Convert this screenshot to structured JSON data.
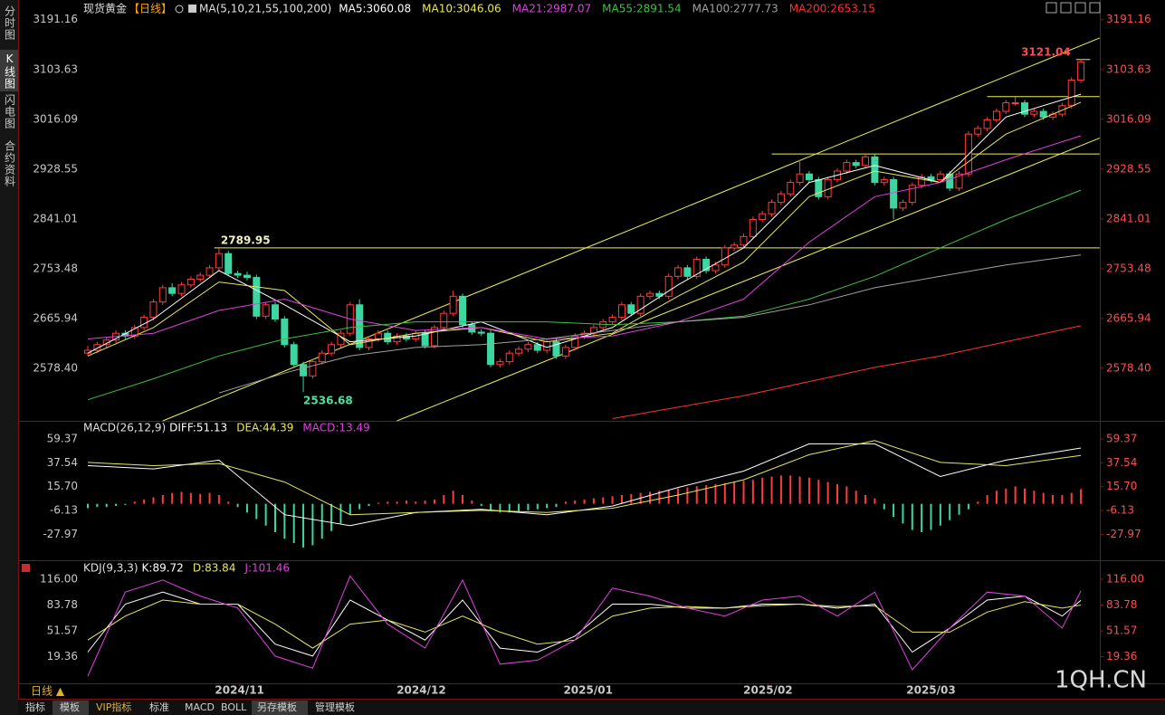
{
  "ui": {
    "sidebar_tabs": [
      "分时图",
      "K线图",
      "闪电图",
      "合约资料"
    ],
    "period_button": "日线 ▲",
    "bottom_tabs": [
      "指标",
      "模板",
      "VIP指标",
      "标准",
      "MACD",
      "BOLL",
      "另存模板",
      "管理模板"
    ],
    "watermark": "1QH.CN"
  },
  "chart_data": [
    {
      "type": "candlestick",
      "title": "现货黄金",
      "period": "【日线】",
      "indicator": "MA(5,10,21,55,100,200)",
      "up_color": "#ff3c3c",
      "down_color": "#3cd6a0",
      "trend_color": "#f0f050",
      "open": [
        2605,
        2610,
        2620,
        2628,
        2640,
        2635,
        2650,
        2668,
        2695,
        2720,
        2710,
        2725,
        2735,
        2742,
        2755,
        2780,
        2745,
        2742,
        2738,
        2670,
        2690,
        2665,
        2620,
        2585,
        2565,
        2590,
        2605,
        2620,
        2640,
        2690,
        2615,
        2630,
        2640,
        2625,
        2635,
        2630,
        2640,
        2618,
        2650,
        2675,
        2705,
        2655,
        2642,
        2640,
        2585,
        2590,
        2605,
        2612,
        2620,
        2610,
        2625,
        2600,
        2615,
        2635,
        2640,
        2650,
        2660,
        2668,
        2690,
        2675,
        2705,
        2710,
        2705,
        2740,
        2755,
        2740,
        2770,
        2750,
        2760,
        2790,
        2795,
        2810,
        2840,
        2850,
        2870,
        2885,
        2905,
        2920,
        2910,
        2880,
        2910,
        2925,
        2940,
        2935,
        2950,
        2905,
        2910,
        2860,
        2870,
        2900,
        2915,
        2910,
        2920,
        2895,
        2920,
        2990,
        3000,
        3015,
        3030,
        3045,
        3045,
        3025,
        3030,
        3020,
        3025,
        3040,
        3085
      ],
      "high": [
        2618,
        2625,
        2633,
        2645,
        2645,
        2655,
        2673,
        2700,
        2725,
        2728,
        2730,
        2740,
        2747,
        2760,
        2789.95,
        2785,
        2750,
        2748,
        2743,
        2695,
        2695,
        2670,
        2625,
        2590,
        2595,
        2610,
        2625,
        2645,
        2695,
        2700,
        2635,
        2645,
        2645,
        2640,
        2640,
        2645,
        2645,
        2655,
        2680,
        2715,
        2710,
        2660,
        2647,
        2645,
        2595,
        2610,
        2617,
        2625,
        2625,
        2630,
        2630,
        2620,
        2640,
        2645,
        2655,
        2665,
        2673,
        2695,
        2695,
        2710,
        2715,
        2715,
        2745,
        2760,
        2760,
        2775,
        2775,
        2765,
        2795,
        2800,
        2815,
        2845,
        2855,
        2875,
        2890,
        2910,
        2945,
        2925,
        2915,
        2915,
        2930,
        2945,
        2945,
        2955,
        2955,
        2915,
        2915,
        2875,
        2905,
        2920,
        2920,
        2925,
        2925,
        2925,
        2995,
        3005,
        3020,
        3035,
        3050,
        3055,
        3050,
        3035,
        3035,
        3030,
        3045,
        3090,
        3121.04
      ],
      "low": [
        2600,
        2605,
        2615,
        2623,
        2630,
        2630,
        2645,
        2663,
        2690,
        2705,
        2705,
        2720,
        2730,
        2737,
        2750,
        2740,
        2737,
        2733,
        2665,
        2665,
        2660,
        2615,
        2580,
        2536.68,
        2560,
        2585,
        2600,
        2615,
        2635,
        2610,
        2610,
        2625,
        2620,
        2620,
        2625,
        2625,
        2613,
        2613,
        2645,
        2670,
        2650,
        2637,
        2635,
        2580,
        2580,
        2585,
        2600,
        2607,
        2605,
        2605,
        2595,
        2595,
        2610,
        2630,
        2635,
        2645,
        2655,
        2663,
        2670,
        2670,
        2700,
        2700,
        2700,
        2735,
        2735,
        2735,
        2745,
        2745,
        2755,
        2785,
        2790,
        2805,
        2835,
        2845,
        2865,
        2880,
        2900,
        2905,
        2875,
        2875,
        2905,
        2920,
        2930,
        2930,
        2900,
        2900,
        2840,
        2855,
        2865,
        2895,
        2905,
        2905,
        2890,
        2890,
        2915,
        2985,
        2995,
        3010,
        3025,
        3040,
        3020,
        3020,
        3015,
        3015,
        3020,
        3035,
        3080
      ],
      "close": [
        2610,
        2620,
        2628,
        2640,
        2635,
        2650,
        2668,
        2695,
        2720,
        2710,
        2725,
        2735,
        2742,
        2755,
        2780,
        2745,
        2742,
        2738,
        2670,
        2690,
        2665,
        2620,
        2585,
        2565,
        2590,
        2605,
        2620,
        2640,
        2690,
        2615,
        2630,
        2640,
        2625,
        2635,
        2630,
        2640,
        2618,
        2650,
        2675,
        2705,
        2655,
        2642,
        2640,
        2585,
        2590,
        2605,
        2612,
        2620,
        2610,
        2625,
        2600,
        2615,
        2635,
        2640,
        2650,
        2660,
        2668,
        2690,
        2675,
        2705,
        2710,
        2705,
        2740,
        2755,
        2740,
        2770,
        2750,
        2760,
        2790,
        2795,
        2810,
        2840,
        2850,
        2870,
        2885,
        2905,
        2920,
        2910,
        2880,
        2910,
        2925,
        2940,
        2935,
        2950,
        2905,
        2910,
        2860,
        2870,
        2900,
        2915,
        2910,
        2920,
        2895,
        2920,
        2990,
        3000,
        3015,
        3030,
        3045,
        3045,
        3025,
        3030,
        3020,
        3025,
        3040,
        3085,
        3117
      ],
      "ma_x": [
        0,
        7,
        14,
        21,
        28,
        35,
        42,
        49,
        56,
        63,
        70,
        77,
        84,
        91,
        98,
        106
      ],
      "series": [
        {
          "name": "MA5:3060.08",
          "color": "#ffffff",
          "values": [
            2605,
            2665,
            2750,
            2690,
            2625,
            2635,
            2660,
            2615,
            2650,
            2725,
            2790,
            2905,
            2935,
            2905,
            3020,
            3060.08
          ]
        },
        {
          "name": "MA10:3046.06",
          "color": "#e8e85a",
          "values": [
            2600,
            2650,
            2730,
            2715,
            2620,
            2640,
            2650,
            2625,
            2640,
            2705,
            2765,
            2880,
            2925,
            2905,
            2990,
            3046.06
          ]
        },
        {
          "name": "MA21:2987.07",
          "color": "#e040e0",
          "values": [
            2630,
            2640,
            2680,
            2700,
            2665,
            2645,
            2650,
            2630,
            2635,
            2660,
            2700,
            2800,
            2880,
            2905,
            2945,
            2987.07
          ]
        },
        {
          "name": "MA55:2891.54",
          "color": "#40c040",
          "values": [
            2523,
            2560,
            2600,
            2630,
            2650,
            2660,
            2660,
            2660,
            2655,
            2660,
            2670,
            2700,
            2740,
            2790,
            2840,
            2891.54
          ]
        },
        {
          "name": "MA100:2777.73",
          "color": "#a0a0a0",
          "values": [
            null,
            null,
            2535,
            2570,
            2600,
            2615,
            2620,
            2630,
            2645,
            2660,
            2668,
            2690,
            2720,
            2740,
            2760,
            2777.73
          ]
        },
        {
          "name": "MA200:2653.15",
          "color": "#ff3030",
          "values": [
            null,
            null,
            null,
            null,
            null,
            null,
            null,
            null,
            2490,
            2510,
            2530,
            2555,
            2580,
            2600,
            2625,
            2653.15
          ]
        }
      ],
      "trendlines": [
        {
          "x": [
            8,
            108
          ],
          "values": [
            2486,
            3159
          ]
        },
        {
          "x": [
            33,
            108
          ],
          "values": [
            2486,
            2983
          ]
        },
        {
          "x": [
            13.5,
            108
          ],
          "values": [
            2789.95,
            2789.95
          ]
        },
        {
          "x": [
            73,
            108
          ],
          "values": [
            2955,
            2955
          ]
        },
        {
          "x": [
            96,
            108
          ],
          "values": [
            3056,
            3056
          ]
        },
        {
          "x": [
            105.5,
            107
          ],
          "values": [
            3121.04,
            3121.04
          ]
        }
      ],
      "annotations": [
        {
          "label": "2789.95",
          "x": 14,
          "value": 2789.95,
          "color": "#f0f0c0"
        },
        {
          "label": "2536.68",
          "x": 23,
          "value": 2536.68,
          "color": "#50e0a0"
        },
        {
          "label": "3121.04",
          "x": 106,
          "value": 3121.04,
          "color": "#ff4d4d"
        }
      ],
      "xlim": [
        -7.44,
        108.02
      ],
      "xticks": [
        {
          "value": 16.2,
          "label": "2024/11"
        },
        {
          "value": 35.6,
          "label": "2024/12"
        },
        {
          "value": 53.4,
          "label": "2025/01"
        },
        {
          "value": 72.6,
          "label": "2025/02"
        },
        {
          "value": 90,
          "label": "2025/03"
        }
      ],
      "ylim": [
        2486,
        3213
      ],
      "yticks": [
        3191.16,
        3103.63,
        3016.09,
        2928.55,
        2841.01,
        2753.48,
        2665.94,
        {
          "value": 2578.4,
          "label": "2578.40"
        }
      ]
    },
    {
      "type": "macd",
      "title": "MACD(26,12,9)",
      "x": [
        0,
        7,
        14,
        21,
        28,
        35,
        42,
        49,
        56,
        63,
        70,
        77,
        84,
        91,
        98,
        106
      ],
      "series": [
        {
          "name": "DIFF:51.13",
          "color": "#ffffff",
          "values": [
            35,
            32,
            40,
            -10,
            -20,
            -8,
            -5,
            -10,
            -2,
            15,
            30,
            55,
            55,
            25,
            40,
            51.13
          ]
        },
        {
          "name": "DEA:44.39",
          "color": "#e8e85a",
          "values": [
            38,
            35,
            37,
            20,
            -10,
            -8,
            -6,
            -8,
            -4,
            8,
            22,
            45,
            58,
            38,
            35,
            44.39
          ]
        }
      ],
      "histogram": {
        "name": "MACD:13.49",
        "color": "#e040e0",
        "up_color": "#ff3c3c",
        "down_color": "#3cd6a0",
        "values": [
          -4,
          -3,
          -3,
          -2,
          -1,
          2,
          4,
          6,
          8,
          10,
          11,
          10,
          9,
          10,
          8,
          2,
          -3,
          -8,
          -14,
          -20,
          -26,
          -32,
          -36,
          -40,
          -38,
          -32,
          -25,
          -18,
          -10,
          -5,
          -2,
          1,
          2,
          2,
          3,
          2,
          3,
          4,
          8,
          12,
          8,
          3,
          -2,
          -6,
          -8,
          -8,
          -7,
          -6,
          -5,
          -4,
          -3,
          2,
          3,
          4,
          5,
          6,
          7,
          8,
          9,
          10,
          11,
          12,
          13,
          14,
          15,
          16,
          17,
          18,
          19,
          20,
          21,
          22,
          24,
          25,
          26,
          26,
          25,
          24,
          22,
          20,
          18,
          16,
          12,
          8,
          5,
          -5,
          -12,
          -18,
          -24,
          -26,
          -24,
          -20,
          -15,
          -10,
          -5,
          2,
          8,
          12,
          14,
          16,
          14,
          12,
          10,
          8,
          8,
          10,
          13.49
        ]
      },
      "ylim": [
        -50.9,
        71.9
      ],
      "yticks": [
        59.37,
        37.54,
        {
          "value": 15.7,
          "label": "15.70"
        },
        -6.13,
        -27.97
      ]
    },
    {
      "type": "kdj",
      "title": "KDJ(9,3,3)",
      "x": [
        0,
        4,
        8,
        12,
        16,
        20,
        24,
        28,
        32,
        36,
        40,
        44,
        48,
        52,
        56,
        60,
        64,
        68,
        72,
        76,
        80,
        84,
        88,
        92,
        96,
        100,
        104,
        106
      ],
      "series": [
        {
          "name": "K:89.72",
          "color": "#ffffff",
          "values": [
            25,
            85,
            100,
            85,
            85,
            35,
            20,
            90,
            65,
            40,
            90,
            30,
            25,
            45,
            85,
            85,
            80,
            80,
            85,
            85,
            80,
            85,
            25,
            55,
            90,
            95,
            70,
            89.72
          ]
        },
        {
          "name": "D:83.84",
          "color": "#e8e85a",
          "values": [
            40,
            70,
            90,
            85,
            85,
            60,
            30,
            60,
            65,
            50,
            70,
            50,
            35,
            40,
            70,
            80,
            82,
            80,
            83,
            85,
            82,
            83,
            50,
            50,
            75,
            88,
            80,
            83.84
          ]
        },
        {
          "name": "J:101.46",
          "color": "#e040e0",
          "values": [
            -5,
            100,
            115,
            95,
            80,
            20,
            5,
            120,
            60,
            30,
            115,
            10,
            15,
            40,
            105,
            95,
            80,
            70,
            90,
            95,
            70,
            100,
            3,
            55,
            100,
            95,
            55,
            101.46
          ]
        }
      ],
      "ylim": [
        -10.6,
        133
      ],
      "yticks": [
        {
          "value": 116,
          "label": "116.00"
        },
        83.78,
        51.57,
        19.36
      ]
    }
  ]
}
